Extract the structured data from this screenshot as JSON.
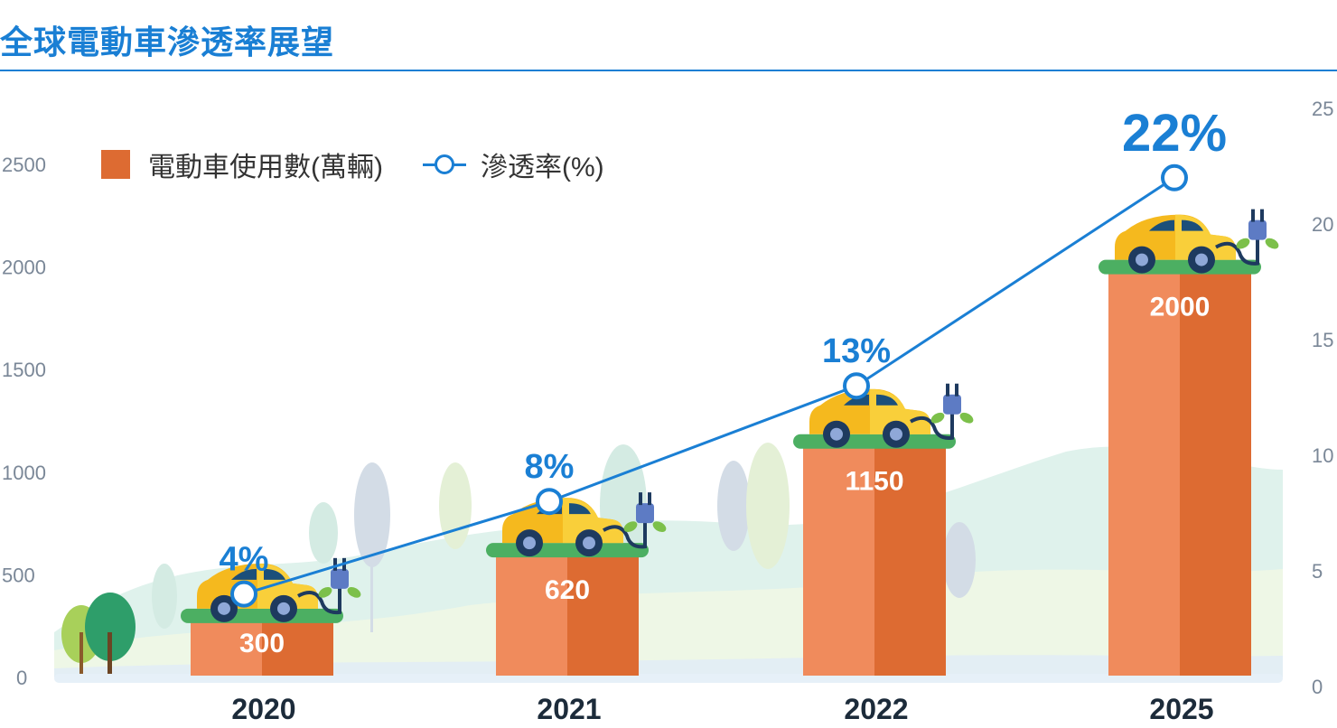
{
  "title": "全球電動車滲透率展望",
  "legend": {
    "bar_label": "電動車使用數(萬輛)",
    "line_label": "滲透率(%)"
  },
  "colors": {
    "bar_light": "#f08b5c",
    "bar_dark": "#dd6b32",
    "line": "#1a7fd4",
    "car": "#f5b91e",
    "grass": "#4caf62"
  },
  "chart_data": {
    "type": "bar",
    "categories": [
      "2020",
      "2021",
      "2022",
      "2025"
    ],
    "series": [
      {
        "name": "電動車使用數(萬輛)",
        "type": "bar",
        "axis": "left",
        "values": [
          300,
          620,
          1150,
          2000
        ],
        "labels": [
          "300",
          "620",
          "1150",
          "2000"
        ]
      },
      {
        "name": "滲透率(%)",
        "type": "line",
        "axis": "right",
        "values": [
          4,
          8,
          13,
          22
        ],
        "labels": [
          "4%",
          "8%",
          "13%",
          "22%"
        ]
      }
    ],
    "y_left": {
      "ticks": [
        "0",
        "500",
        "1000",
        "1500",
        "2000",
        "2500"
      ],
      "lim": [
        0,
        2500
      ]
    },
    "y_right": {
      "ticks": [
        "0",
        "5",
        "10",
        "15",
        "20",
        "25"
      ],
      "lim": [
        0,
        25
      ]
    },
    "legend_position": "top-left",
    "grid": false
  }
}
